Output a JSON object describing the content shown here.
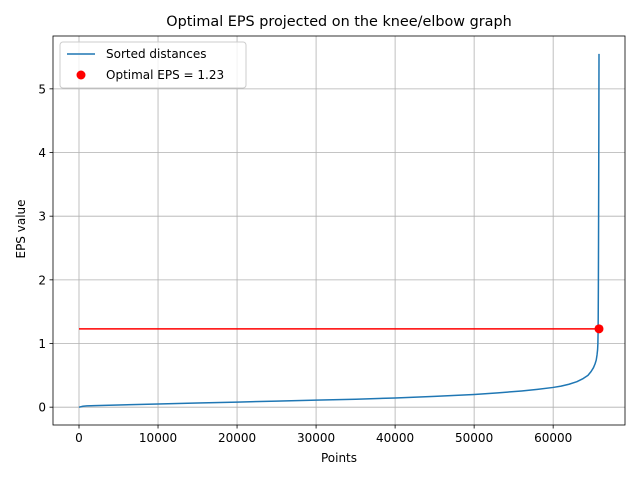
{
  "chart_data": {
    "type": "line",
    "title": "Optimal EPS projected on the knee/elbow graph",
    "xlabel": "Points",
    "ylabel": "EPS value",
    "xlim": [
      -3290,
      69090
    ],
    "ylim": [
      -0.28,
      5.83
    ],
    "xticks": [
      0,
      10000,
      20000,
      30000,
      40000,
      50000,
      60000
    ],
    "yticks": [
      0,
      1,
      2,
      3,
      4,
      5
    ],
    "grid": true,
    "legend_position": "top-left",
    "series": [
      {
        "name": "Sorted distances",
        "type": "line",
        "color": "#1f77b4",
        "x": [
          0,
          500,
          1000,
          2000,
          5000,
          10000,
          15000,
          20000,
          25000,
          30000,
          35000,
          40000,
          45000,
          50000,
          53000,
          56000,
          58000,
          60000,
          61000,
          62000,
          63000,
          63800,
          64400,
          64800,
          65100,
          65300,
          65450,
          65550,
          65620,
          65660,
          65680,
          65700,
          65720,
          65740,
          65760,
          65780,
          65800
        ],
        "y": [
          0.0,
          0.015,
          0.02,
          0.025,
          0.035,
          0.05,
          0.065,
          0.08,
          0.095,
          0.11,
          0.125,
          0.145,
          0.17,
          0.2,
          0.225,
          0.255,
          0.28,
          0.31,
          0.33,
          0.36,
          0.4,
          0.45,
          0.5,
          0.56,
          0.62,
          0.68,
          0.74,
          0.82,
          0.9,
          1.0,
          1.15,
          1.4,
          1.9,
          2.6,
          3.4,
          4.4,
          5.55
        ]
      },
      {
        "name": "Optimal EPS = 1.23",
        "type": "scatter",
        "color": "#ff0000",
        "x": [
          65800
        ],
        "y": [
          1.23
        ]
      }
    ],
    "hline": {
      "y": 1.23,
      "x_from": 0,
      "x_to": 65800,
      "color": "#ff0000"
    }
  }
}
